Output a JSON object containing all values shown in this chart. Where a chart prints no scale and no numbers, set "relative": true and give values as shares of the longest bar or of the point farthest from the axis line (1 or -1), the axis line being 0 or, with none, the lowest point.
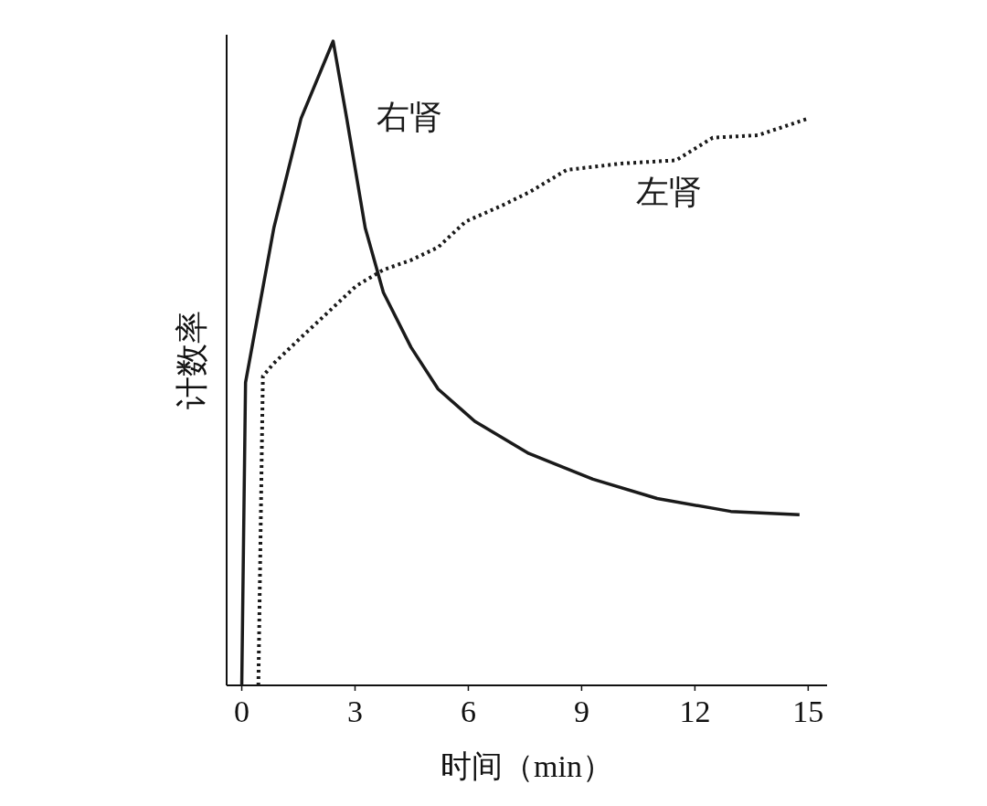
{
  "chart_data": {
    "type": "line",
    "xlabel": "时间（min）",
    "ylabel": "计数率",
    "relative": true,
    "xlim": [
      -0.4,
      15.5
    ],
    "xticks": [
      0,
      3,
      6,
      9,
      12,
      15
    ],
    "series": [
      {
        "name": "右肾",
        "color": "#1a1a1a",
        "line_style": "solid",
        "x": [
          0,
          0.1,
          0.85,
          1.57,
          2.42,
          2.78,
          3.27,
          3.75,
          4.48,
          5.2,
          6.17,
          7.6,
          9.3,
          11.0,
          12.95,
          14.77
        ],
        "values": [
          0,
          0.47,
          0.71,
          0.88,
          1.0,
          0.88,
          0.71,
          0.61,
          0.525,
          0.46,
          0.41,
          0.36,
          0.32,
          0.29,
          0.27,
          0.265
        ]
      },
      {
        "name": "左肾",
        "color": "#1a1a1a",
        "line_style": "dotted",
        "x": [
          0.44,
          0.56,
          0.85,
          1.57,
          2.3,
          3.03,
          3.75,
          4.48,
          5.2,
          5.93,
          6.9,
          7.63,
          8.6,
          10.05,
          11.5,
          12.47,
          13.68,
          15
        ],
        "values": [
          0,
          0.48,
          0.5,
          0.54,
          0.58,
          0.62,
          0.645,
          0.66,
          0.68,
          0.72,
          0.745,
          0.766,
          0.8,
          0.81,
          0.815,
          0.85,
          0.854,
          0.88
        ]
      }
    ]
  }
}
